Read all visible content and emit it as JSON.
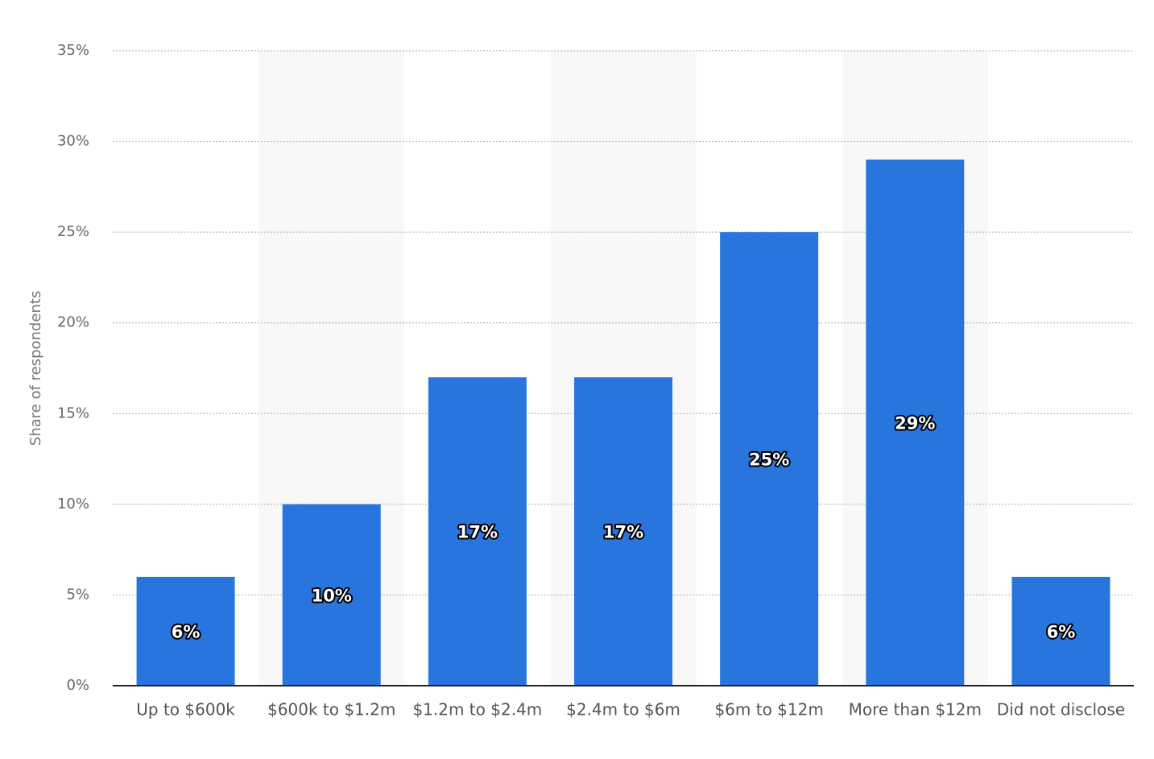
{
  "chart_data": {
    "type": "bar",
    "y_axis_label": "Share of respondents",
    "categories": [
      "Up to $600k",
      "$600k to $1.2m",
      "$1.2m to $2.4m",
      "$2.4m to $6m",
      "$6m to $12m",
      "More than $12m",
      "Did not disclose"
    ],
    "values": [
      6,
      10,
      17,
      17,
      25,
      29,
      6
    ],
    "value_labels": [
      "6%",
      "10%",
      "17%",
      "17%",
      "25%",
      "29%",
      "6%"
    ],
    "color": "#2876dd",
    "ylim": [
      0,
      35
    ],
    "yticks": [
      {
        "value": 0,
        "label": "0%"
      },
      {
        "value": 5,
        "label": "5%"
      },
      {
        "value": 10,
        "label": "10%"
      },
      {
        "value": 15,
        "label": "15%"
      },
      {
        "value": 20,
        "label": "20%"
      },
      {
        "value": 25,
        "label": "25%"
      },
      {
        "value": 30,
        "label": "30%"
      },
      {
        "value": 35,
        "label": "35%"
      }
    ],
    "grid": true
  }
}
